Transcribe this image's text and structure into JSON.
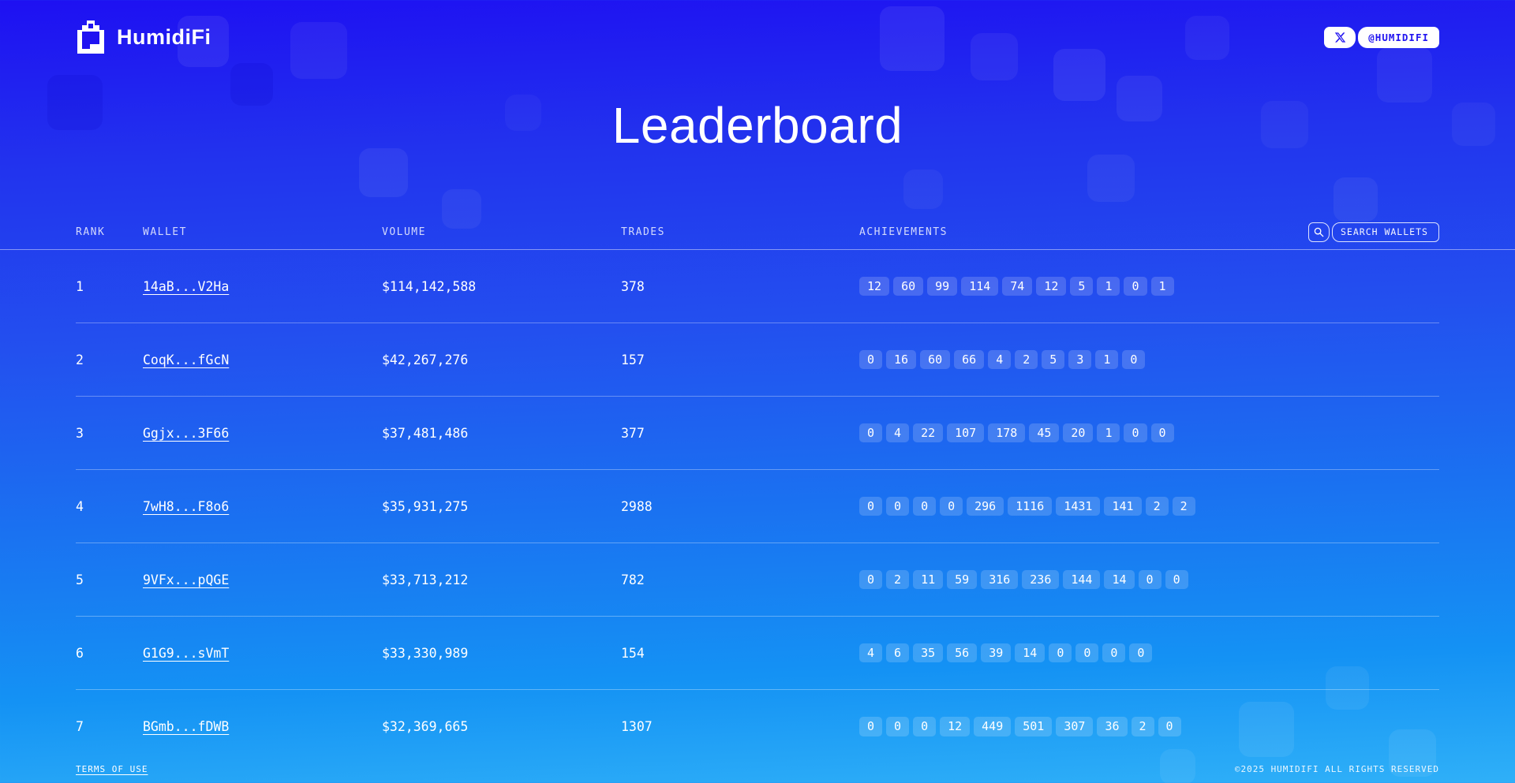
{
  "brand": {
    "name": "HumidiFi",
    "x_handle": "@HUMIDIFI"
  },
  "page": {
    "title": "Leaderboard"
  },
  "table": {
    "headers": {
      "rank": "RANK",
      "wallet": "WALLET",
      "volume": "VOLUME",
      "trades": "TRADES",
      "achievements": "ACHIEVEMENTS"
    },
    "search_placeholder": "SEARCH WALLETS",
    "rows": [
      {
        "rank": "1",
        "wallet": "14aB...V2Ha",
        "volume": "$114,142,588",
        "trades": "378",
        "achievements": [
          "12",
          "60",
          "99",
          "114",
          "74",
          "12",
          "5",
          "1",
          "0",
          "1"
        ]
      },
      {
        "rank": "2",
        "wallet": "CoqK...fGcN",
        "volume": "$42,267,276",
        "trades": "157",
        "achievements": [
          "0",
          "16",
          "60",
          "66",
          "4",
          "2",
          "5",
          "3",
          "1",
          "0"
        ]
      },
      {
        "rank": "3",
        "wallet": "Ggjx...3F66",
        "volume": "$37,481,486",
        "trades": "377",
        "achievements": [
          "0",
          "4",
          "22",
          "107",
          "178",
          "45",
          "20",
          "1",
          "0",
          "0"
        ]
      },
      {
        "rank": "4",
        "wallet": "7wH8...F8o6",
        "volume": "$35,931,275",
        "trades": "2988",
        "achievements": [
          "0",
          "0",
          "0",
          "0",
          "296",
          "1116",
          "1431",
          "141",
          "2",
          "2"
        ]
      },
      {
        "rank": "5",
        "wallet": "9VFx...pQGE",
        "volume": "$33,713,212",
        "trades": "782",
        "achievements": [
          "0",
          "2",
          "11",
          "59",
          "316",
          "236",
          "144",
          "14",
          "0",
          "0"
        ]
      },
      {
        "rank": "6",
        "wallet": "G1G9...sVmT",
        "volume": "$33,330,989",
        "trades": "154",
        "achievements": [
          "4",
          "6",
          "35",
          "56",
          "39",
          "14",
          "0",
          "0",
          "0",
          "0"
        ]
      },
      {
        "rank": "7",
        "wallet": "BGmb...fDWB",
        "volume": "$32,369,665",
        "trades": "1307",
        "achievements": [
          "0",
          "0",
          "0",
          "12",
          "449",
          "501",
          "307",
          "36",
          "2",
          "0"
        ]
      }
    ]
  },
  "footer": {
    "terms": "TERMS OF USE",
    "copyright": "©2025 HUMIDIFI ALL RIGHTS RESERVED"
  },
  "colors": {
    "bg_top": "#1e10f2",
    "bg_bottom": "#2fb0f8",
    "accent_text_on_white": "#2114f0",
    "badge_bg": "rgba(255,255,255,0.17)"
  }
}
